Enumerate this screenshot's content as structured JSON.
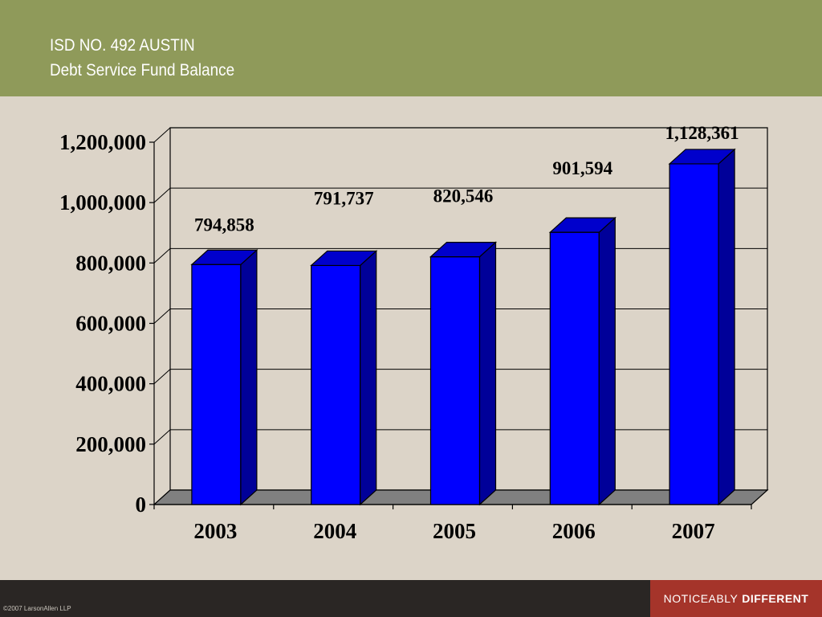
{
  "header": {
    "line1": "ISD NO. 492 AUSTIN",
    "line2": "Debt Service Fund Balance"
  },
  "footer": {
    "copyright": "©2007 LarsonAllen LLP",
    "tagline_prefix": "NOTICEABLY",
    "tagline_bold": "DIFFERENT"
  },
  "colors": {
    "header_bg": "#8f9a5a",
    "slide_bg": "#dcd4c8",
    "bar_front": "#0000ff",
    "bar_side": "#000099",
    "bar_top": "#0000cc",
    "floor": "#808080",
    "brand_bg": "#a5342a"
  },
  "chart_data": {
    "type": "bar",
    "style": "3d-column",
    "categories": [
      "2003",
      "2004",
      "2005",
      "2006",
      "2007"
    ],
    "values": [
      794858,
      791737,
      820546,
      901594,
      1128361
    ],
    "data_labels": [
      "794,858",
      "791,737",
      "820,546",
      "901,594",
      "1,128,361"
    ],
    "y_ticks": [
      0,
      200000,
      400000,
      600000,
      800000,
      1000000,
      1200000
    ],
    "y_tick_labels": [
      "0",
      "200,000",
      "400,000",
      "600,000",
      "800,000",
      "1,000,000",
      "1,200,000"
    ],
    "ylim": [
      0,
      1200000
    ],
    "grid": true,
    "legend": "none"
  }
}
